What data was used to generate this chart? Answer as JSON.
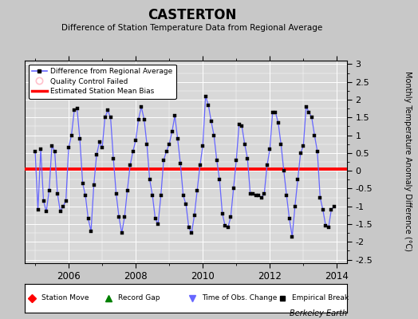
{
  "title": "CASTERTON",
  "subtitle": "Difference of Station Temperature Data from Regional Average",
  "ylabel": "Monthly Temperature Anomaly Difference (°C)",
  "ylim": [
    -2.6,
    3.1
  ],
  "xlim": [
    2004.7,
    2014.3
  ],
  "bias_value": 0.05,
  "line_color": "#6666FF",
  "bias_color": "#FF0000",
  "bg_color": "#C8C8C8",
  "plot_bg_color": "#D8D8D8",
  "footer_text": "Berkeley Earth",
  "data_x": [
    2005.0,
    2005.083,
    2005.167,
    2005.25,
    2005.333,
    2005.417,
    2005.5,
    2005.583,
    2005.667,
    2005.75,
    2005.833,
    2005.917,
    2006.0,
    2006.083,
    2006.167,
    2006.25,
    2006.333,
    2006.417,
    2006.5,
    2006.583,
    2006.667,
    2006.75,
    2006.833,
    2006.917,
    2007.0,
    2007.083,
    2007.167,
    2007.25,
    2007.333,
    2007.417,
    2007.5,
    2007.583,
    2007.667,
    2007.75,
    2007.833,
    2007.917,
    2008.0,
    2008.083,
    2008.167,
    2008.25,
    2008.333,
    2008.417,
    2008.5,
    2008.583,
    2008.667,
    2008.75,
    2008.833,
    2008.917,
    2009.0,
    2009.083,
    2009.167,
    2009.25,
    2009.333,
    2009.417,
    2009.5,
    2009.583,
    2009.667,
    2009.75,
    2009.833,
    2009.917,
    2010.0,
    2010.083,
    2010.167,
    2010.25,
    2010.333,
    2010.417,
    2010.5,
    2010.583,
    2010.667,
    2010.75,
    2010.833,
    2010.917,
    2011.0,
    2011.083,
    2011.167,
    2011.25,
    2011.333,
    2011.417,
    2011.5,
    2011.583,
    2011.667,
    2011.75,
    2011.833,
    2011.917,
    2012.0,
    2012.083,
    2012.167,
    2012.25,
    2012.333,
    2012.417,
    2012.5,
    2012.583,
    2012.667,
    2012.75,
    2012.833,
    2012.917,
    2013.0,
    2013.083,
    2013.167,
    2013.25,
    2013.333,
    2013.417,
    2013.5,
    2013.583,
    2013.667,
    2013.75,
    2013.833,
    2013.917
  ],
  "data_y": [
    0.55,
    -1.1,
    0.6,
    -0.85,
    -1.15,
    -0.55,
    0.7,
    0.55,
    -0.65,
    -1.15,
    -1.0,
    -0.85,
    0.65,
    1.0,
    1.7,
    1.75,
    0.9,
    -0.35,
    -0.7,
    -1.35,
    -1.7,
    -0.4,
    0.45,
    0.8,
    0.65,
    1.5,
    1.7,
    1.5,
    0.35,
    -0.65,
    -1.3,
    -1.75,
    -1.3,
    -0.55,
    0.15,
    0.55,
    0.85,
    1.45,
    1.8,
    1.45,
    0.75,
    -0.25,
    -0.7,
    -1.35,
    -1.5,
    -0.7,
    0.3,
    0.55,
    0.75,
    1.1,
    1.55,
    0.9,
    0.2,
    -0.7,
    -0.95,
    -1.6,
    -1.75,
    -1.25,
    -0.55,
    0.15,
    0.7,
    2.1,
    1.85,
    1.4,
    1.0,
    0.3,
    -0.25,
    -1.2,
    -1.55,
    -1.6,
    -1.3,
    -0.5,
    0.3,
    1.3,
    1.25,
    0.75,
    0.35,
    -0.65,
    -0.65,
    -0.7,
    -0.7,
    -0.75,
    -0.65,
    0.15,
    0.6,
    1.65,
    1.65,
    1.35,
    0.75,
    0.0,
    -0.7,
    -1.35,
    -1.85,
    -1.0,
    -0.25,
    0.5,
    0.7,
    1.8,
    1.65,
    1.5,
    1.0,
    0.55,
    -0.75,
    -1.1,
    -1.55,
    -1.6,
    -1.1,
    -1.0
  ],
  "yticks": [
    -2.5,
    -2.0,
    -1.5,
    -1.0,
    -0.5,
    0.0,
    0.5,
    1.0,
    1.5,
    2.0,
    2.5,
    3.0
  ],
  "ytick_labels": [
    "-2.5",
    "-2",
    "-1.5",
    "-1",
    "-0.5",
    "0",
    "0.5",
    "1",
    "1.5",
    "2",
    "2.5",
    "3"
  ],
  "xticks": [
    2006,
    2008,
    2010,
    2012,
    2014
  ],
  "xtick_labels": [
    "2006",
    "2008",
    "2010",
    "2012",
    "2014"
  ]
}
